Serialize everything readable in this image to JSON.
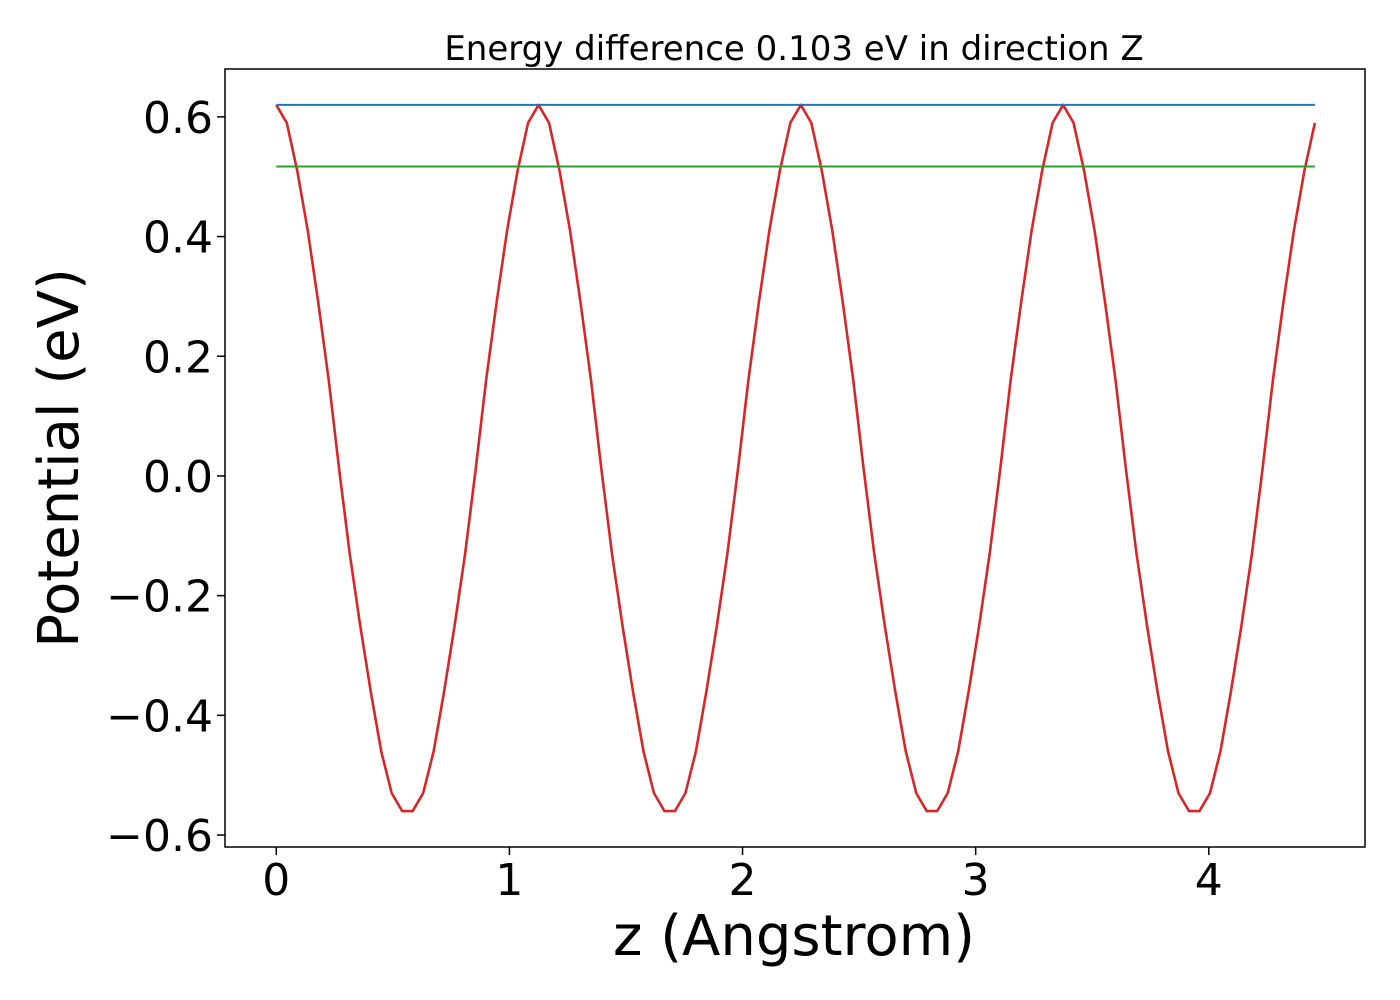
{
  "chart_data": {
    "type": "line",
    "title": "Energy difference 0.103 eV in direction Z",
    "xlabel": "z (Angstrom)",
    "ylabel": "Potential (eV)",
    "xlim": [
      -0.22,
      4.67
    ],
    "ylim": [
      -0.62,
      0.68
    ],
    "x_ticks": [
      0,
      1,
      2,
      3,
      4
    ],
    "x_tick_labels": [
      "0",
      "1",
      "2",
      "3",
      "4"
    ],
    "y_ticks": [
      0.6,
      0.4,
      0.2,
      0.0,
      -0.2,
      -0.4,
      -0.6
    ],
    "y_tick_labels": [
      "0.6",
      "0.4",
      "0.2",
      "0.0",
      "−0.2",
      "−0.4",
      "−0.6"
    ],
    "grid": false,
    "series": [
      {
        "color": "#d62728",
        "x": [
          0.0,
          0.045,
          0.09,
          0.135,
          0.18,
          0.225,
          0.27,
          0.315,
          0.36,
          0.405,
          0.45,
          0.495,
          0.54,
          0.585,
          0.63,
          0.675,
          0.72,
          0.765,
          0.81,
          0.855,
          0.9,
          0.945,
          0.99,
          1.035,
          1.08,
          1.125,
          1.17,
          1.215,
          1.26,
          1.305,
          1.35,
          1.395,
          1.44,
          1.485,
          1.53,
          1.575,
          1.62,
          1.665,
          1.71,
          1.755,
          1.8,
          1.845,
          1.89,
          1.935,
          1.98,
          2.025,
          2.07,
          2.115,
          2.16,
          2.205,
          2.25,
          2.295,
          2.34,
          2.385,
          2.43,
          2.475,
          2.52,
          2.565,
          2.61,
          2.655,
          2.7,
          2.745,
          2.79,
          2.835,
          2.88,
          2.925,
          2.97,
          3.015,
          3.06,
          3.105,
          3.15,
          3.195,
          3.24,
          3.285,
          3.33,
          3.375,
          3.42,
          3.465,
          3.51,
          3.555,
          3.6,
          3.645,
          3.69,
          3.735,
          3.78,
          3.825,
          3.87,
          3.915,
          3.96,
          4.005,
          4.05,
          4.095,
          4.14,
          4.185,
          4.23,
          4.275,
          4.32,
          4.365,
          4.41,
          4.455
        ],
        "y": [
          0.62,
          0.59,
          0.51,
          0.41,
          0.29,
          0.16,
          0.01,
          -0.13,
          -0.25,
          -0.36,
          -0.46,
          -0.53,
          -0.56,
          -0.56,
          -0.53,
          -0.46,
          -0.36,
          -0.25,
          -0.13,
          0.01,
          0.16,
          0.29,
          0.41,
          0.51,
          0.59,
          0.62,
          0.59,
          0.51,
          0.41,
          0.29,
          0.16,
          0.01,
          -0.13,
          -0.25,
          -0.36,
          -0.46,
          -0.53,
          -0.56,
          -0.56,
          -0.53,
          -0.46,
          -0.36,
          -0.25,
          -0.13,
          0.01,
          0.16,
          0.29,
          0.41,
          0.51,
          0.59,
          0.62,
          0.59,
          0.51,
          0.41,
          0.29,
          0.16,
          0.01,
          -0.13,
          -0.25,
          -0.36,
          -0.46,
          -0.53,
          -0.56,
          -0.56,
          -0.53,
          -0.46,
          -0.36,
          -0.25,
          -0.13,
          0.01,
          0.16,
          0.29,
          0.41,
          0.51,
          0.59,
          0.62,
          0.59,
          0.51,
          0.41,
          0.29,
          0.16,
          0.01,
          -0.13,
          -0.25,
          -0.36,
          -0.46,
          -0.53,
          -0.56,
          -0.56,
          -0.53,
          -0.46,
          -0.36,
          -0.25,
          -0.13,
          0.01,
          0.16,
          0.29,
          0.41,
          0.51,
          0.59
        ]
      },
      {
        "color": "#1f77b4",
        "x": [
          0.0,
          4.455
        ],
        "y": [
          0.62,
          0.62
        ]
      },
      {
        "color": "#2ca02c",
        "x": [
          0.0,
          4.455
        ],
        "y": [
          0.517,
          0.517
        ]
      }
    ]
  }
}
